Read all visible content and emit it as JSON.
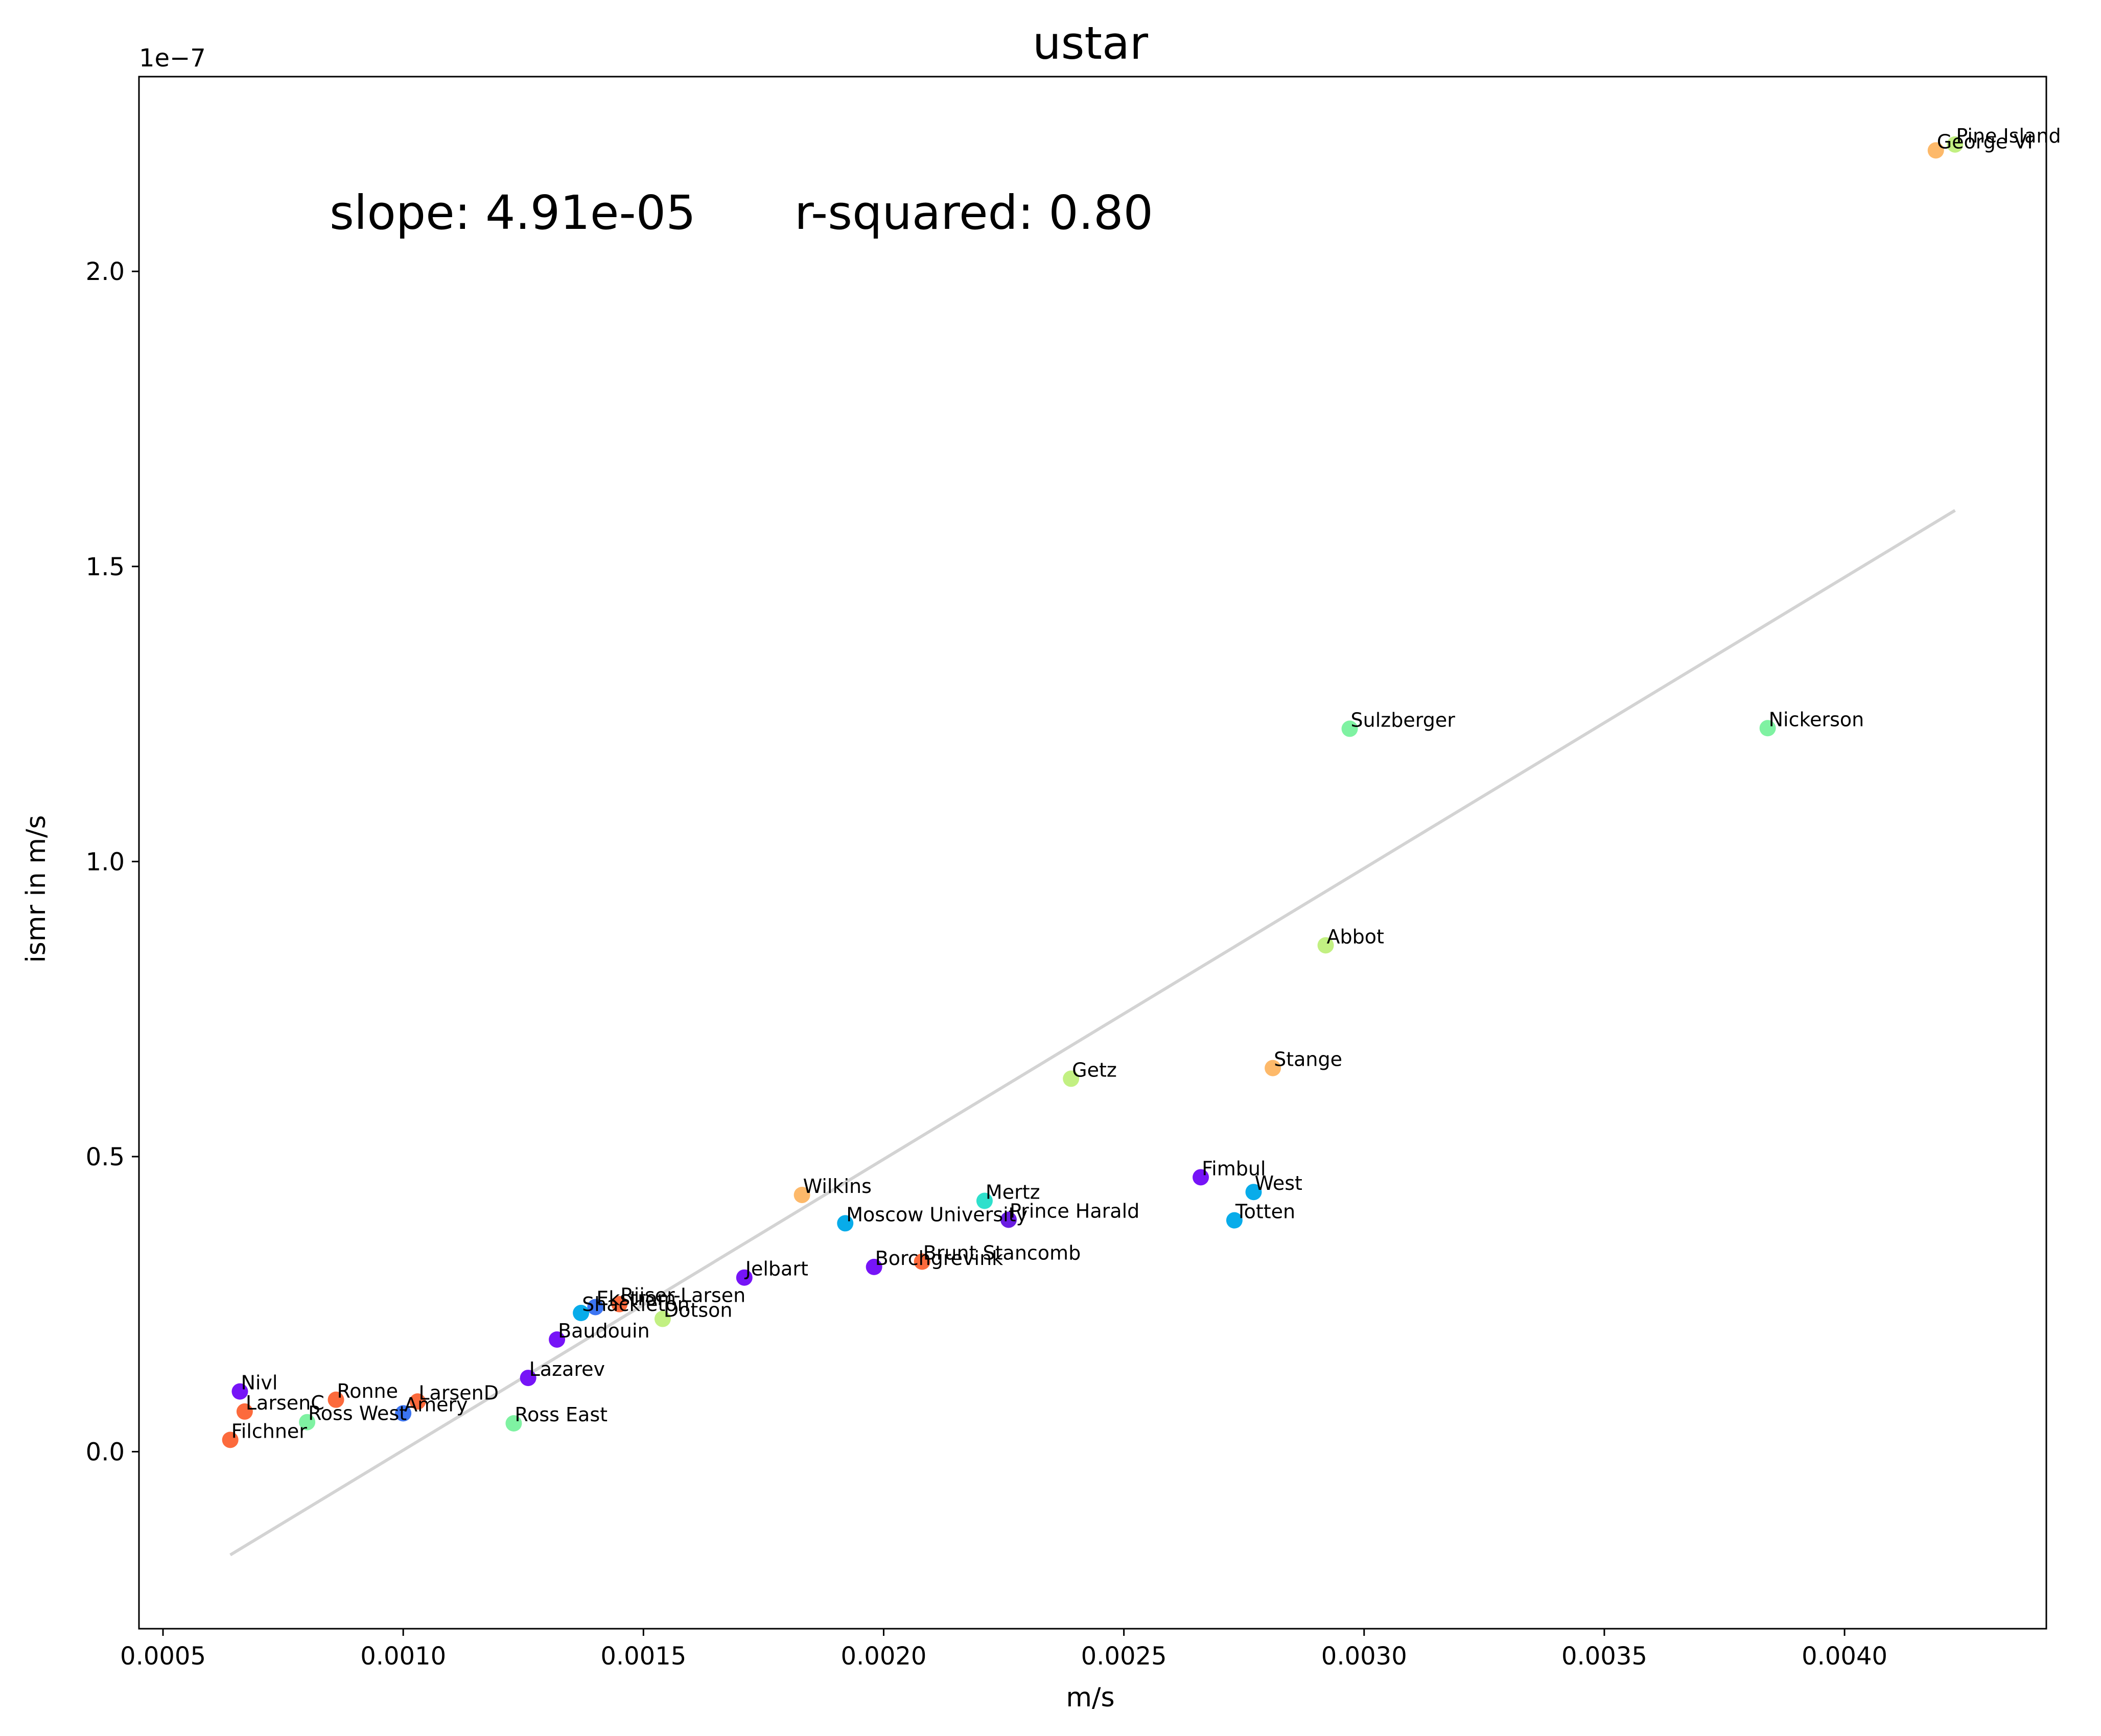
{
  "chart_data": {
    "type": "scatter",
    "title": "ustar",
    "xlabel": "m/s",
    "ylabel": "ismr in m/s",
    "y_offset_label": "1e−7",
    "y_scale": 1e-07,
    "annotation": {
      "slope": "slope: 4.91e-05",
      "r_squared": "r-squared: 0.80"
    },
    "xlim": [
      0.00045,
      0.00442
    ],
    "ylim": [
      -0.3,
      2.33
    ],
    "xticks": [
      {
        "value": 0.0005,
        "label": "0.0005"
      },
      {
        "value": 0.001,
        "label": "0.0010"
      },
      {
        "value": 0.0015,
        "label": "0.0015"
      },
      {
        "value": 0.002,
        "label": "0.0020"
      },
      {
        "value": 0.0025,
        "label": "0.0025"
      },
      {
        "value": 0.003,
        "label": "0.0030"
      },
      {
        "value": 0.0035,
        "label": "0.0035"
      },
      {
        "value": 0.004,
        "label": "0.0040"
      }
    ],
    "yticks": [
      {
        "value": 0.0,
        "label": "0.0"
      },
      {
        "value": 0.5,
        "label": "0.5"
      },
      {
        "value": 1.0,
        "label": "1.0"
      },
      {
        "value": 1.5,
        "label": "1.5"
      },
      {
        "value": 2.0,
        "label": "2.0"
      }
    ],
    "fit_line": {
      "x": [
        0.00064,
        0.00423
      ],
      "y": [
        -0.175,
        1.595
      ],
      "color": "#d3d3d3"
    },
    "grid": false,
    "points": [
      {
        "label": "Pine Island",
        "x": 0.00423,
        "y": 2.215,
        "color": "#c2f082"
      },
      {
        "label": "George VI",
        "x": 0.00419,
        "y": 2.205,
        "color": "#fdb96a"
      },
      {
        "label": "Sulzberger",
        "x": 0.00297,
        "y": 1.225,
        "color": "#7ff2a2"
      },
      {
        "label": "Nickerson",
        "x": 0.00384,
        "y": 1.226,
        "color": "#7ff2a2"
      },
      {
        "label": "Abbot",
        "x": 0.00292,
        "y": 0.858,
        "color": "#c2f082"
      },
      {
        "label": "Stange",
        "x": 0.00281,
        "y": 0.65,
        "color": "#fdb96a"
      },
      {
        "label": "Getz",
        "x": 0.00239,
        "y": 0.632,
        "color": "#c2f082"
      },
      {
        "label": "Fimbul",
        "x": 0.00266,
        "y": 0.465,
        "color": "#7614f7"
      },
      {
        "label": "West",
        "x": 0.00277,
        "y": 0.44,
        "color": "#08acea"
      },
      {
        "label": "Totten",
        "x": 0.00273,
        "y": 0.392,
        "color": "#08acea"
      },
      {
        "label": "Mertz",
        "x": 0.00221,
        "y": 0.425,
        "color": "#2ee0cc"
      },
      {
        "label": "Prince Harald",
        "x": 0.00226,
        "y": 0.393,
        "color": "#6a1de2"
      },
      {
        "label": "Wilkins",
        "x": 0.00183,
        "y": 0.435,
        "color": "#fdb96a"
      },
      {
        "label": "Moscow University",
        "x": 0.00192,
        "y": 0.387,
        "color": "#08acea"
      },
      {
        "label": "Brunt Stancomb",
        "x": 0.00208,
        "y": 0.322,
        "color": "#fc6a3c"
      },
      {
        "label": "Borchgrevink",
        "x": 0.00198,
        "y": 0.313,
        "color": "#7614f7"
      },
      {
        "label": "Jelbart",
        "x": 0.00171,
        "y": 0.295,
        "color": "#7614f7"
      },
      {
        "label": "Riiser-Larsen",
        "x": 0.00145,
        "y": 0.25,
        "color": "#fc6a3c"
      },
      {
        "label": "Ekstrom",
        "x": 0.0014,
        "y": 0.245,
        "color": "#3c75f2"
      },
      {
        "label": "Shackleton",
        "x": 0.00137,
        "y": 0.235,
        "color": "#08acea"
      },
      {
        "label": "Dotson",
        "x": 0.00154,
        "y": 0.225,
        "color": "#c2f082"
      },
      {
        "label": "Baudouin",
        "x": 0.00132,
        "y": 0.19,
        "color": "#7614f7"
      },
      {
        "label": "Lazarev",
        "x": 0.00126,
        "y": 0.125,
        "color": "#7614f7"
      },
      {
        "label": "Nivl",
        "x": 0.00066,
        "y": 0.102,
        "color": "#7614f7"
      },
      {
        "label": "Ronne",
        "x": 0.00086,
        "y": 0.088,
        "color": "#fc6a3c"
      },
      {
        "label": "LarsenD",
        "x": 0.00103,
        "y": 0.085,
        "color": "#fc6a3c"
      },
      {
        "label": "LarsenC",
        "x": 0.00067,
        "y": 0.068,
        "color": "#fc6a3c"
      },
      {
        "label": "Amery",
        "x": 0.001,
        "y": 0.065,
        "color": "#3c75f2"
      },
      {
        "label": "Ross West",
        "x": 0.0008,
        "y": 0.05,
        "color": "#7ff2a2"
      },
      {
        "label": "Ross East",
        "x": 0.00123,
        "y": 0.048,
        "color": "#7ff2a2"
      },
      {
        "label": "Filchner",
        "x": 0.00064,
        "y": 0.02,
        "color": "#fc6a3c"
      }
    ]
  }
}
